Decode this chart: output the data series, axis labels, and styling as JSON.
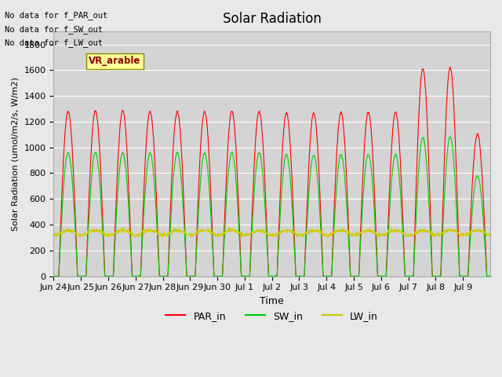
{
  "title": "Solar Radiation",
  "ylabel": "Solar Radiation (umol/m2/s, W/m2)",
  "xlabel": "Time",
  "ylim": [
    0,
    1900
  ],
  "yticks": [
    0,
    200,
    400,
    600,
    800,
    1000,
    1200,
    1400,
    1600,
    1800
  ],
  "xtick_labels": [
    "Jun 24",
    "Jun 25",
    "Jun 26",
    "Jun 27",
    "Jun 28",
    "Jun 29",
    "Jun 30",
    "Jul 1",
    "Jul 2",
    "Jul 3",
    "Jul 4",
    "Jul 5",
    "Jul 6",
    "Jul 7",
    "Jul 8",
    "Jul 9"
  ],
  "num_days": 16,
  "annotations": [
    "No data for f_PAR_out",
    "No data for f_SW_out",
    "No data for f_LW_out"
  ],
  "vr_label": "VR_arable",
  "par_color": "#ff0000",
  "sw_color": "#00cc00",
  "lw_color": "#cccc00",
  "background_color": "#e8e8e8",
  "plot_bg_color": "#d4d4d4",
  "grid_color": "#ffffff",
  "par_peaks": [
    1280,
    1285,
    1285,
    1280,
    1278,
    1280,
    1282,
    1280,
    1265,
    1265,
    1270,
    1272,
    1275,
    1610,
    1620,
    1100
  ],
  "sw_peaks": [
    960,
    960,
    960,
    955,
    960,
    955,
    960,
    958,
    945,
    940,
    942,
    945,
    942,
    1075,
    1080,
    780
  ],
  "lw_base": 330,
  "lw_amplitude": 25,
  "day_start": 4.5,
  "day_end": 21.0
}
